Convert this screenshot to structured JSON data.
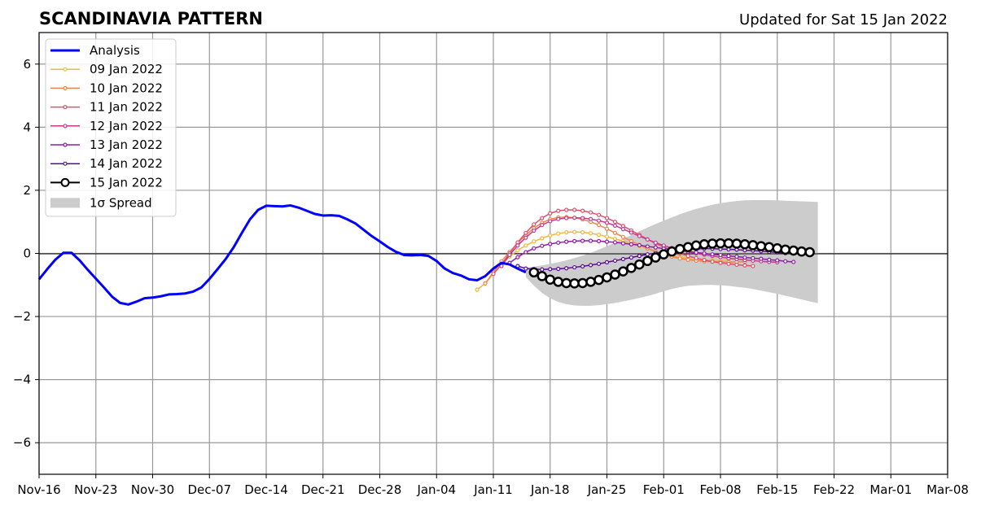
{
  "chart_data": {
    "type": "line",
    "title": "SCANDINAVIA PATTERN",
    "subtitle": "Updated for Sat 15 Jan 2022",
    "xlabel": "",
    "ylabel": "",
    "x_tick_labels": [
      "Nov-16",
      "Nov-23",
      "Nov-30",
      "Dec-07",
      "Dec-14",
      "Dec-21",
      "Dec-28",
      "Jan-04",
      "Jan-11",
      "Jan-18",
      "Jan-25",
      "Feb-01",
      "Feb-08",
      "Feb-15",
      "Feb-22",
      "Mar-01",
      "Mar-08"
    ],
    "y_tick_labels": [
      "−6",
      "−4",
      "−2",
      "0",
      "2",
      "4",
      "6"
    ],
    "xlim": [
      "2021-11-16",
      "2022-03-08"
    ],
    "ylim": [
      -7,
      7
    ],
    "grid": true,
    "legend_position": "top-left",
    "analysis": {
      "name": "Analysis",
      "color": "#0000ff",
      "start": "2021-11-16",
      "values": [
        -0.82,
        -0.5,
        -0.2,
        0.02,
        0.02,
        -0.22,
        -0.52,
        -0.8,
        -1.08,
        -1.37,
        -1.57,
        -1.62,
        -1.53,
        -1.42,
        -1.4,
        -1.36,
        -1.3,
        -1.29,
        -1.27,
        -1.21,
        -1.08,
        -0.81,
        -0.5,
        -0.18,
        0.2,
        0.65,
        1.08,
        1.38,
        1.51,
        1.5,
        1.49,
        1.52,
        1.45,
        1.35,
        1.25,
        1.2,
        1.21,
        1.19,
        1.08,
        0.95,
        0.75,
        0.55,
        0.38,
        0.2,
        0.05,
        -0.05,
        -0.06,
        -0.05,
        -0.08,
        -0.24,
        -0.48,
        -0.62,
        -0.7,
        -0.82,
        -0.85,
        -0.72,
        -0.48,
        -0.3,
        -0.35,
        -0.48,
        -0.6
      ]
    },
    "spread": {
      "name": "1σ Spread",
      "color": "#cccccc",
      "start": "2022-01-15",
      "upper": [
        -0.45,
        -0.42,
        -0.38,
        -0.33,
        -0.28,
        -0.22,
        -0.15,
        -0.07,
        0.02,
        0.12,
        0.23,
        0.34,
        0.46,
        0.58,
        0.7,
        0.82,
        0.93,
        1.04,
        1.14,
        1.24,
        1.33,
        1.41,
        1.48,
        1.54,
        1.59,
        1.63,
        1.66,
        1.68,
        1.69,
        1.69,
        1.69,
        1.68,
        1.67,
        1.66,
        1.65,
        1.64,
        1.63
      ],
      "lower": [
        -0.75,
        -1.02,
        -1.25,
        -1.42,
        -1.54,
        -1.61,
        -1.65,
        -1.66,
        -1.66,
        -1.64,
        -1.61,
        -1.57,
        -1.52,
        -1.47,
        -1.41,
        -1.35,
        -1.28,
        -1.2,
        -1.13,
        -1.07,
        -1.03,
        -1.01,
        -1.0,
        -1.0,
        -1.01,
        -1.03,
        -1.06,
        -1.09,
        -1.13,
        -1.18,
        -1.23,
        -1.28,
        -1.34,
        -1.4,
        -1.46,
        -1.52,
        -1.58
      ]
    },
    "forecasts": [
      {
        "name": "09 Jan 2022",
        "color": "#f6b73c",
        "start": "2022-01-09",
        "values": [
          -1.15,
          -0.95,
          -0.65,
          -0.35,
          -0.1,
          0.1,
          0.25,
          0.38,
          0.48,
          0.57,
          0.63,
          0.67,
          0.68,
          0.67,
          0.64,
          0.59,
          0.53,
          0.46,
          0.39,
          0.31,
          0.23,
          0.15,
          0.07,
          -0.01,
          -0.07,
          -0.12,
          -0.16,
          -0.19,
          -0.21,
          -0.22,
          -0.22,
          -0.2,
          -0.18,
          -0.15
        ]
      },
      {
        "name": "10 Jan 2022",
        "color": "#f0834a",
        "start": "2022-01-10",
        "values": [
          -0.95,
          -0.6,
          -0.25,
          0.05,
          0.33,
          0.58,
          0.8,
          0.97,
          1.08,
          1.14,
          1.15,
          1.13,
          1.08,
          1.0,
          0.9,
          0.78,
          0.65,
          0.52,
          0.39,
          0.27,
          0.16,
          0.06,
          -0.03,
          -0.1,
          -0.16,
          -0.2,
          -0.23,
          -0.25,
          -0.26,
          -0.27,
          -0.27,
          -0.27,
          -0.26
        ]
      },
      {
        "name": "11 Jan 2022",
        "color": "#e0506a",
        "start": "2022-01-11",
        "values": [
          -0.65,
          -0.35,
          0.0,
          0.35,
          0.65,
          0.92,
          1.12,
          1.27,
          1.35,
          1.38,
          1.38,
          1.35,
          1.3,
          1.22,
          1.12,
          1.0,
          0.87,
          0.73,
          0.59,
          0.45,
          0.32,
          0.2,
          0.09,
          0.0,
          -0.08,
          -0.15,
          -0.21,
          -0.26,
          -0.3,
          -0.33,
          -0.36,
          -0.38,
          -0.4
        ]
      },
      {
        "name": "12 Jan 2022",
        "color": "#c43c8e",
        "start": "2022-01-12",
        "values": [
          -0.4,
          -0.05,
          0.25,
          0.5,
          0.72,
          0.9,
          1.02,
          1.09,
          1.12,
          1.13,
          1.12,
          1.09,
          1.04,
          0.97,
          0.88,
          0.77,
          0.66,
          0.55,
          0.44,
          0.34,
          0.25,
          0.17,
          0.11,
          0.05,
          0.0,
          -0.04,
          -0.08,
          -0.12,
          -0.15,
          -0.18,
          -0.21,
          -0.23,
          -0.25,
          -0.27,
          -0.28
        ]
      },
      {
        "name": "13 Jan 2022",
        "color": "#8f1ca8",
        "start": "2022-01-13",
        "values": [
          -0.3,
          -0.12,
          0.04,
          0.16,
          0.24,
          0.3,
          0.34,
          0.37,
          0.39,
          0.4,
          0.4,
          0.39,
          0.37,
          0.35,
          0.32,
          0.29,
          0.26,
          0.22,
          0.19,
          0.15,
          0.12,
          0.09,
          0.06,
          0.03,
          0.0,
          -0.03,
          -0.05,
          -0.08,
          -0.1,
          -0.13,
          -0.15,
          -0.17,
          -0.2,
          -0.22,
          -0.25,
          -0.27
        ]
      },
      {
        "name": "14 Jan 2022",
        "color": "#5c0a96",
        "start": "2022-01-14",
        "values": [
          -0.4,
          -0.48,
          -0.5,
          -0.51,
          -0.5,
          -0.49,
          -0.47,
          -0.44,
          -0.41,
          -0.37,
          -0.33,
          -0.28,
          -0.23,
          -0.18,
          -0.13,
          -0.08,
          -0.03,
          0.01,
          0.05,
          0.08,
          0.11,
          0.13,
          0.14,
          0.15,
          0.15,
          0.14,
          0.13,
          0.12,
          0.1,
          0.09,
          0.07,
          0.05,
          0.03,
          0.01,
          0.0,
          -0.02,
          -0.03
        ]
      },
      {
        "name": "15 Jan 2022",
        "color": "#000000",
        "start": "2022-01-16",
        "values": [
          -0.6,
          -0.72,
          -0.83,
          -0.9,
          -0.94,
          -0.95,
          -0.94,
          -0.9,
          -0.84,
          -0.76,
          -0.67,
          -0.57,
          -0.46,
          -0.35,
          -0.24,
          -0.13,
          -0.03,
          0.06,
          0.14,
          0.2,
          0.25,
          0.29,
          0.31,
          0.32,
          0.32,
          0.31,
          0.29,
          0.26,
          0.23,
          0.2,
          0.16,
          0.12,
          0.09,
          0.06,
          0.04
        ]
      }
    ]
  }
}
